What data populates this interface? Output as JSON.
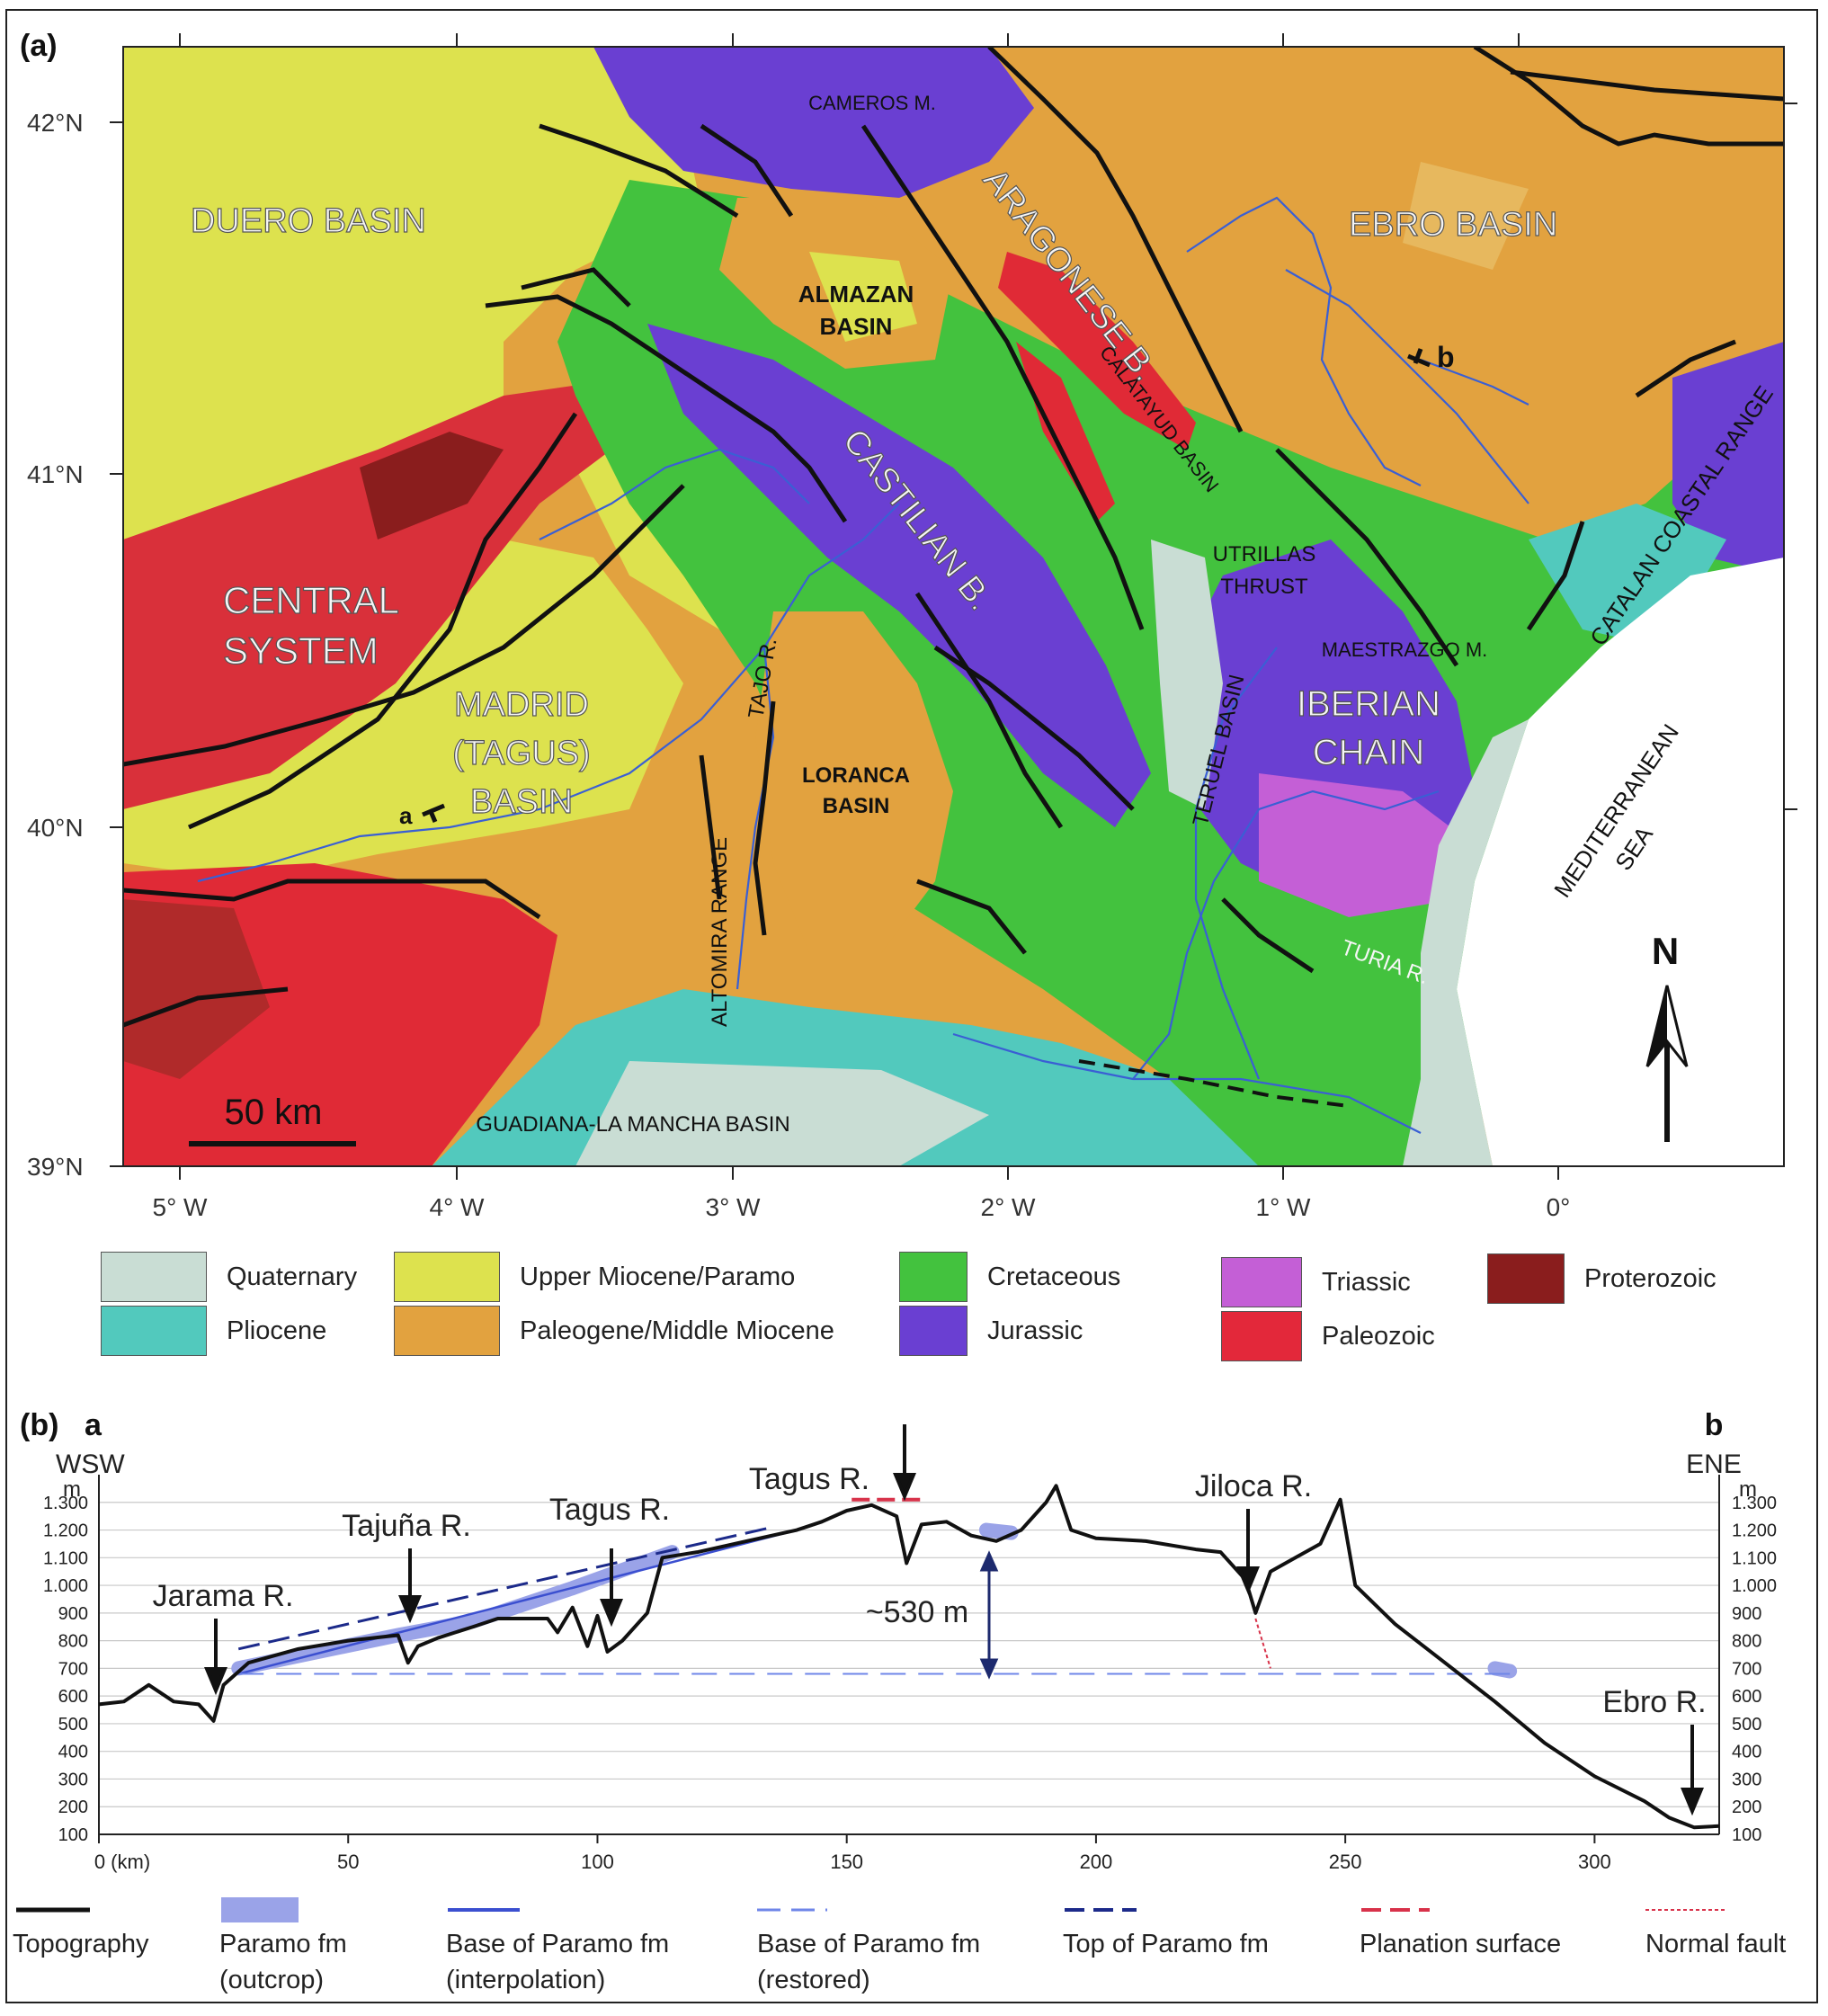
{
  "panel_a": {
    "label": "(a)",
    "lat_labels": [
      "42°N",
      "41°N",
      "40°N",
      "39°N"
    ],
    "lon_labels": [
      "5° W",
      "4° W",
      "3° W",
      "2° W",
      "1° W",
      "0°"
    ],
    "scale_bar": "50 km",
    "north": "N",
    "places": {
      "duero": "DUERO BASIN",
      "ebro": "EBRO BASIN",
      "central1": "CENTRAL",
      "central2": "SYSTEM",
      "madrid1": "MADRID",
      "madrid2": "(TAGUS)",
      "madrid3": "BASIN",
      "iberian1": "IBERIAN",
      "iberian2": "CHAIN",
      "cameros": "CAMEROS M.",
      "almazan1": "ALMAZAN",
      "almazan2": "BASIN",
      "aragonese": "ARAGONESE B.",
      "calatayud": "CALATAYUD BASIN",
      "castilian": "CASTILIAN B.",
      "utrillas1": "UTRILLAS",
      "utrillas2": "THRUST",
      "maestrazgo": "MAESTRAZGO M.",
      "catalan": "CATALAN COASTAL RANGE",
      "tajo": "TAJO R.",
      "loranca1": "LORANCA",
      "loranca2": "BASIN",
      "teruel": "TERUEL BASIN",
      "altomira": "ALTOMIRA RANGE",
      "mediterranean1": "MEDITERRANEAN",
      "mediterranean2": "SEA",
      "turia": "TURIA R.",
      "guadiana": "GUADIANA-LA MANCHA BASIN",
      "point_a": "a",
      "point_b": "b"
    }
  },
  "legend_a": [
    {
      "label": "Quaternary",
      "color": "#c9ddd4"
    },
    {
      "label": "Pliocene",
      "color": "#52c9bd"
    },
    {
      "label": "Upper Miocene/Paramo",
      "color": "#dde24e"
    },
    {
      "label": "Paleogene/Middle Miocene",
      "color": "#e2a23f"
    },
    {
      "label": "Cretaceous",
      "color": "#43c23e"
    },
    {
      "label": "Jurassic",
      "color": "#6a3fd2"
    },
    {
      "label": "Triassic",
      "color": "#c45fd6"
    },
    {
      "label": "Paleozoic",
      "color": "#e3283a"
    },
    {
      "label": "Proterozoic",
      "color": "#8a1d1d"
    }
  ],
  "panel_b": {
    "label": "(b)",
    "end_a": "a",
    "end_b": "b",
    "dir_left": "WSW",
    "dir_right": "ENE",
    "unit": "m",
    "elevation_ticks": [
      "1.300",
      "1.200",
      "1.100",
      "1.000",
      "900",
      "800",
      "700",
      "600",
      "500",
      "400",
      "300",
      "200",
      "100"
    ],
    "distance_ticks": [
      "0 (km)",
      "50",
      "100",
      "150",
      "200",
      "250",
      "300"
    ],
    "rivers": {
      "jarama": "Jarama R.",
      "tajuna": "Tajuña R.",
      "tagus1": "Tagus R.",
      "tagus2": "Tagus R.",
      "jiloca": "Jiloca R.",
      "ebro": "Ebro R."
    },
    "offset": "~530 m"
  },
  "chart_data": {
    "type": "line",
    "xlabel": "(km)",
    "ylabel": "m",
    "xlim": [
      0,
      325
    ],
    "ylim": [
      100,
      1400
    ],
    "series": [
      {
        "name": "Topography",
        "x": [
          0,
          5,
          10,
          15,
          20,
          23,
          25,
          30,
          40,
          50,
          60,
          62,
          64,
          68,
          75,
          80,
          90,
          92,
          95,
          98,
          100,
          102,
          105,
          110,
          113,
          120,
          130,
          140,
          145,
          150,
          155,
          160,
          162,
          165,
          170,
          175,
          180,
          185,
          190,
          192,
          195,
          200,
          210,
          220,
          225,
          230,
          232,
          235,
          240,
          245,
          249,
          252,
          260,
          270,
          280,
          290,
          300,
          310,
          315,
          320,
          325
        ],
        "y": [
          570,
          580,
          640,
          580,
          570,
          510,
          640,
          720,
          770,
          800,
          820,
          720,
          780,
          810,
          850,
          880,
          880,
          830,
          920,
          780,
          890,
          760,
          800,
          900,
          1100,
          1120,
          1160,
          1200,
          1230,
          1270,
          1290,
          1250,
          1080,
          1220,
          1230,
          1180,
          1160,
          1200,
          1300,
          1360,
          1200,
          1170,
          1160,
          1130,
          1120,
          1020,
          900,
          1050,
          1100,
          1150,
          1310,
          1000,
          860,
          720,
          580,
          430,
          310,
          220,
          160,
          125,
          130
        ]
      },
      {
        "name": "Paramo fm (outcrop)",
        "x": [
          28,
          60,
          75,
          95,
          115,
          130,
          178,
          183,
          280,
          283
        ],
        "y": [
          700,
          820,
          870,
          990,
          1120,
          1160,
          1200,
          1190,
          700,
          690
        ]
      },
      {
        "name": "Base of Paramo fm (interpolation)",
        "x": [
          28,
          140
        ],
        "y": [
          680,
          1200
        ]
      },
      {
        "name": "Base of Paramo fm (restored)",
        "x": [
          28,
          285
        ],
        "y": [
          680,
          680
        ]
      },
      {
        "name": "Top of Paramo fm",
        "x": [
          28,
          135
        ],
        "y": [
          770,
          1210
        ]
      },
      {
        "name": "Planation surface",
        "x": [
          151,
          165
        ],
        "y": [
          1310,
          1310
        ]
      },
      {
        "name": "Normal fault",
        "x": [
          232,
          235
        ],
        "y": [
          880,
          700
        ]
      }
    ]
  },
  "legend_b": [
    {
      "line1": "Topography",
      "line2": ""
    },
    {
      "line1": "Paramo fm",
      "line2": "(outcrop)"
    },
    {
      "line1": "Base of Paramo fm",
      "line2": "(interpolation)"
    },
    {
      "line1": "Base of Paramo fm",
      "line2": "(restored)"
    },
    {
      "line1": "Top of Paramo fm",
      "line2": ""
    },
    {
      "line1": "Planation surface",
      "line2": ""
    },
    {
      "line1": "Normal fault",
      "line2": ""
    }
  ]
}
